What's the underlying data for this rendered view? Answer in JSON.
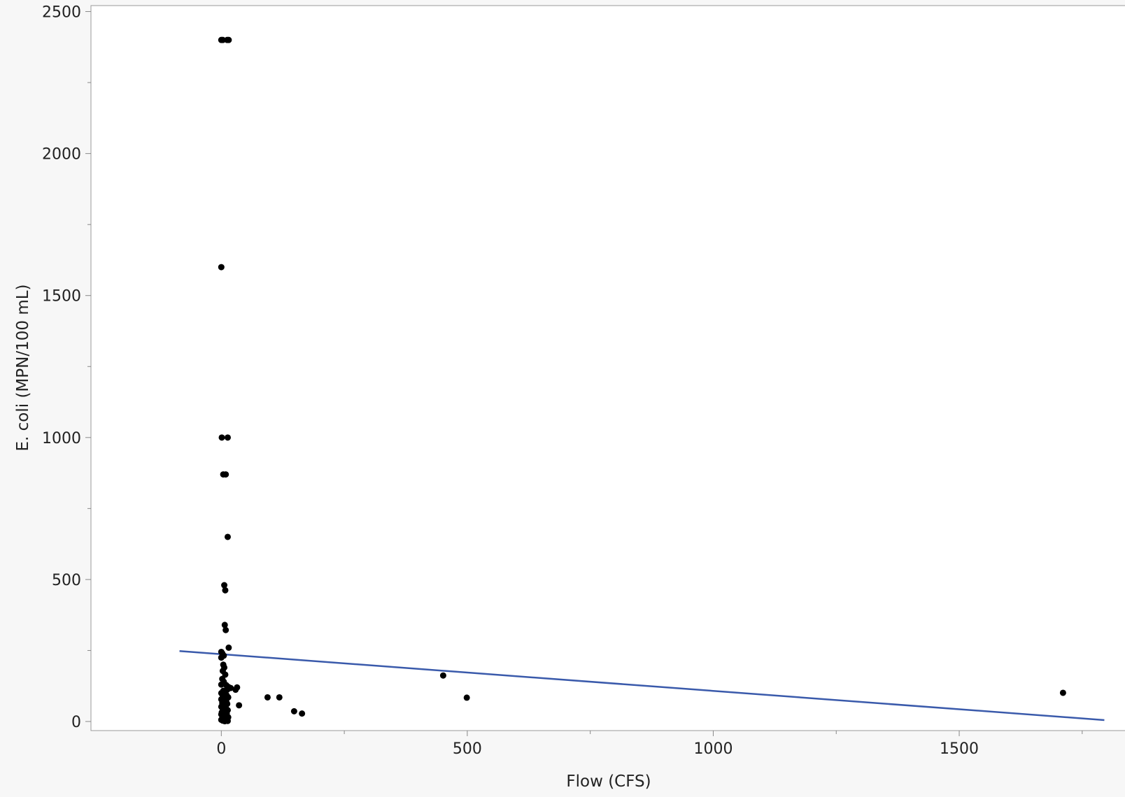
{
  "chart_data": {
    "type": "scatter",
    "title": "",
    "xlabel": "Flow (CFS)",
    "ylabel": "E. coli (MPN/100 mL)",
    "xlim": [
      -265,
      1837
    ],
    "ylim": [
      -32,
      2521
    ],
    "x_ticks": [
      0,
      500,
      1000,
      1500
    ],
    "x_tick_labels": [
      "0",
      "500",
      "1000",
      "1500"
    ],
    "x_minor_ticks": [
      250,
      750,
      1250,
      1750
    ],
    "y_ticks": [
      0,
      500,
      1000,
      1500,
      2000,
      2500
    ],
    "y_tick_labels": [
      "0",
      "500",
      "1000",
      "1500",
      "2000",
      "2500"
    ],
    "y_minor_ticks": [
      250,
      750,
      1250,
      1750,
      2250
    ],
    "grid": false,
    "legend": "none",
    "colors": {
      "points": "#000000",
      "fit_line": "#3a5aab",
      "plot_background": "#ffffff",
      "page_background": "#f7f7f7",
      "axis": "#888888"
    },
    "series": [
      {
        "marker": "circle",
        "points": [
          [
            0,
            2400
          ],
          [
            3,
            2400
          ],
          [
            12,
            2400
          ],
          [
            15,
            2400
          ],
          [
            0,
            1600
          ],
          [
            1,
            1000
          ],
          [
            13,
            1000
          ],
          [
            4,
            870
          ],
          [
            9,
            870
          ],
          [
            13,
            650
          ],
          [
            6,
            480
          ],
          [
            8,
            462
          ],
          [
            7,
            340
          ],
          [
            9,
            322
          ],
          [
            15,
            260
          ],
          [
            0,
            245
          ],
          [
            2,
            240
          ],
          [
            0,
            225
          ],
          [
            5,
            232
          ],
          [
            4,
            200
          ],
          [
            6,
            190
          ],
          [
            3,
            178
          ],
          [
            8,
            165
          ],
          [
            2,
            150
          ],
          [
            5,
            140
          ],
          [
            0,
            130
          ],
          [
            10,
            128
          ],
          [
            14,
            122
          ],
          [
            19,
            118
          ],
          [
            12,
            112
          ],
          [
            4,
            108
          ],
          [
            0,
            100
          ],
          [
            8,
            98
          ],
          [
            11,
            92
          ],
          [
            3,
            88
          ],
          [
            14,
            85
          ],
          [
            0,
            78
          ],
          [
            6,
            75
          ],
          [
            10,
            70
          ],
          [
            2,
            65
          ],
          [
            12,
            62
          ],
          [
            5,
            58
          ],
          [
            0,
            52
          ],
          [
            9,
            48
          ],
          [
            3,
            44
          ],
          [
            13,
            40
          ],
          [
            7,
            36
          ],
          [
            1,
            32
          ],
          [
            11,
            28
          ],
          [
            0,
            25
          ],
          [
            4,
            22
          ],
          [
            9,
            18
          ],
          [
            14,
            15
          ],
          [
            2,
            12
          ],
          [
            6,
            10
          ],
          [
            0,
            6
          ],
          [
            10,
            5
          ],
          [
            3,
            3
          ],
          [
            13,
            2
          ],
          [
            7,
            1
          ],
          [
            29,
            112
          ],
          [
            32,
            120
          ],
          [
            36,
            57
          ],
          [
            94,
            85
          ],
          [
            118,
            85
          ],
          [
            148,
            36
          ],
          [
            164,
            28
          ],
          [
            451,
            162
          ],
          [
            499,
            84
          ],
          [
            1711,
            101
          ]
        ]
      }
    ],
    "fit_line": {
      "type": "linear",
      "x": [
        -85,
        1795
      ],
      "y": [
        248,
        5
      ]
    }
  }
}
